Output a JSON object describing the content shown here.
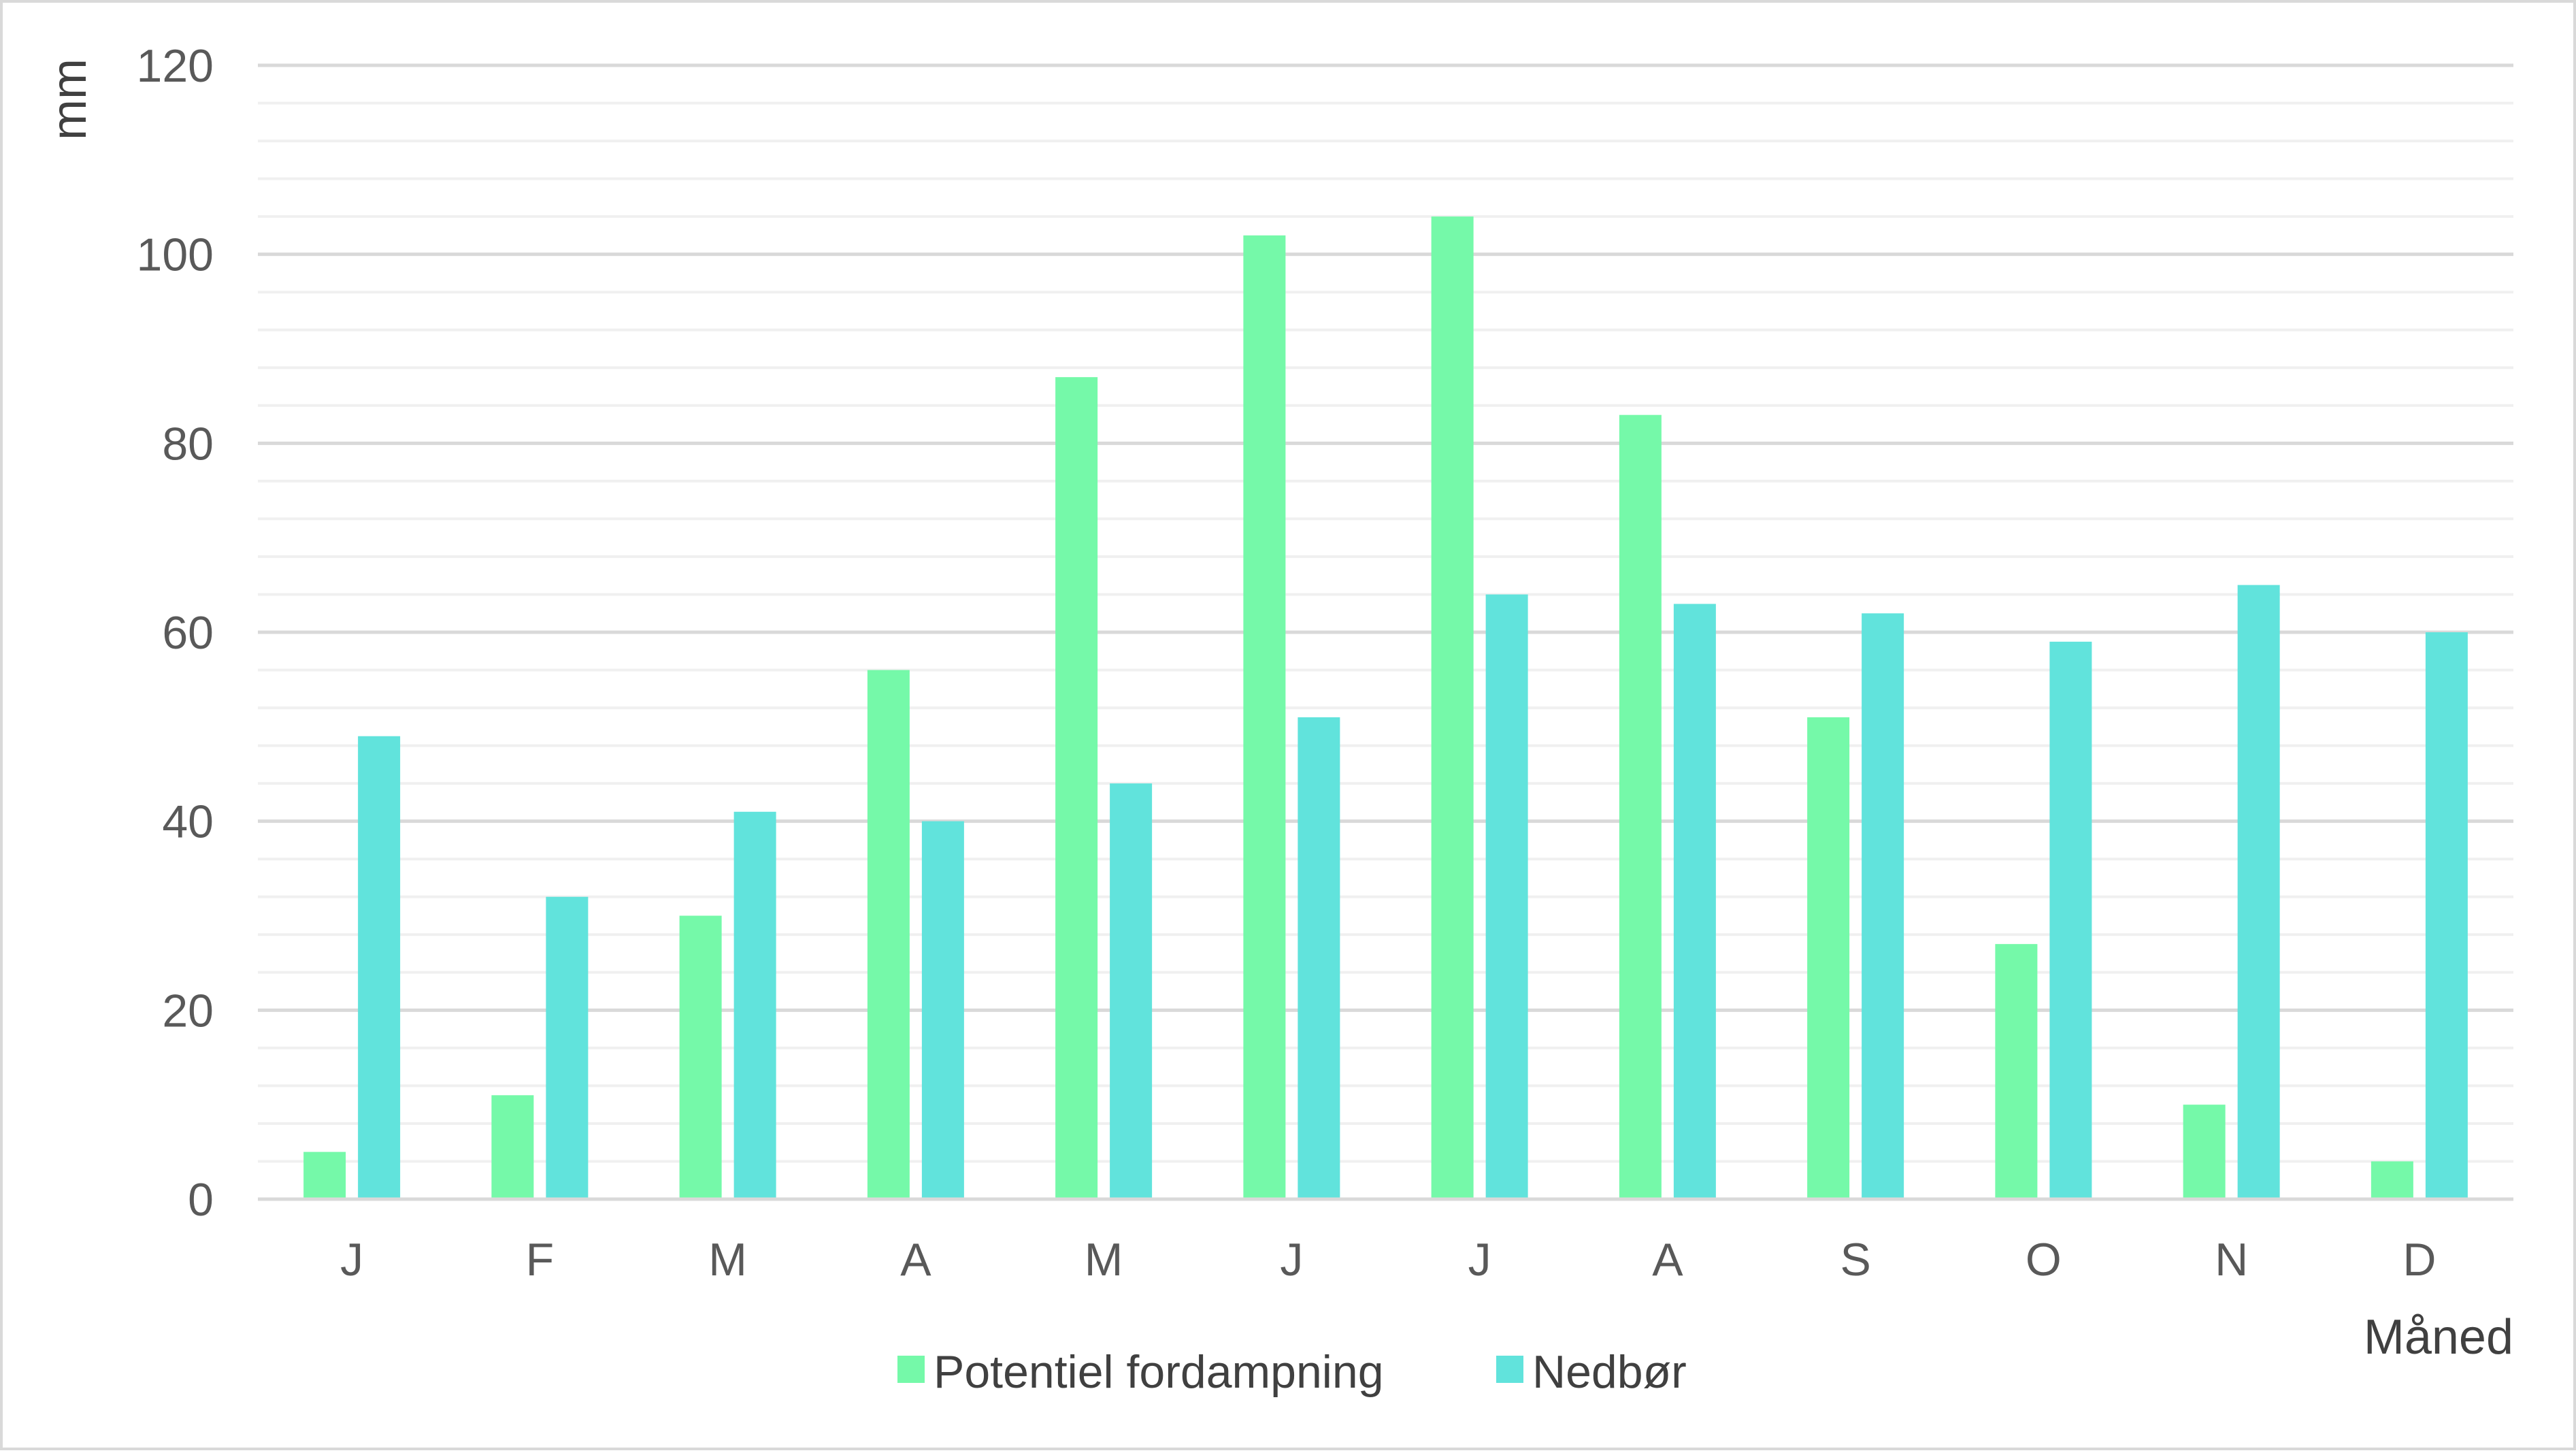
{
  "chart_data": {
    "type": "bar",
    "title": "",
    "ylabel": "mm",
    "xlabel": "Måned",
    "categories": [
      "J",
      "F",
      "M",
      "A",
      "M",
      "J",
      "J",
      "A",
      "S",
      "O",
      "N",
      "D"
    ],
    "series": [
      {
        "name": "Potentiel fordampning",
        "color": "#75f9a9",
        "values": [
          5,
          11,
          30,
          56,
          87,
          102,
          104,
          83,
          51,
          27,
          10,
          4
        ]
      },
      {
        "name": "Nedbør",
        "color": "#61e3dc",
        "values": [
          49,
          32,
          41,
          40,
          44,
          51,
          64,
          63,
          62,
          59,
          65,
          60
        ]
      }
    ],
    "ylim": [
      0,
      120
    ],
    "yticks": [
      "0",
      "20",
      "40",
      "60",
      "80",
      "100",
      "120"
    ],
    "grid": true,
    "legend": "bottom"
  }
}
